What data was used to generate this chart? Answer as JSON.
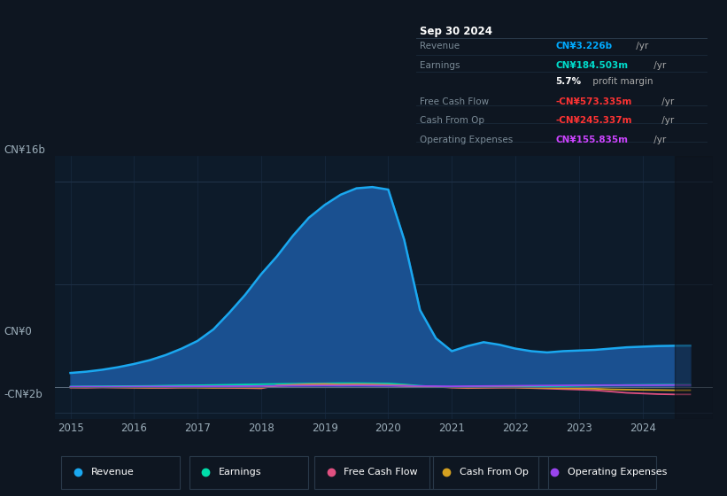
{
  "background_color": "#0e1621",
  "plot_bg_color": "#0d1b2a",
  "title_box": {
    "date": "Sep 30 2024",
    "rows": [
      {
        "label": "Revenue",
        "value": "CN¥3.226b",
        "suffix": " /yr",
        "value_color": "#00aaff"
      },
      {
        "label": "Earnings",
        "value": "CN¥184.503m",
        "suffix": " /yr",
        "value_color": "#00ddcc"
      },
      {
        "label": "",
        "value": "5.7%",
        "suffix": " profit margin",
        "value_color": "#ffffff"
      },
      {
        "label": "Free Cash Flow",
        "value": "-CN¥573.335m",
        "suffix": " /yr",
        "value_color": "#ff3333"
      },
      {
        "label": "Cash From Op",
        "value": "-CN¥245.337m",
        "suffix": " /yr",
        "value_color": "#ff3333"
      },
      {
        "label": "Operating Expenses",
        "value": "CN¥155.835m",
        "suffix": " /yr",
        "value_color": "#cc44ff"
      }
    ]
  },
  "ylim": [
    -2500000000.0,
    18000000000.0
  ],
  "xticks": [
    2015,
    2016,
    2017,
    2018,
    2019,
    2020,
    2021,
    2022,
    2023,
    2024
  ],
  "grid_color": "#1a2d45",
  "hline_color": "#2a3f58",
  "zero_line_color": "#5a6a7a",
  "text_color": "#9aacb8",
  "label_color": "#7a8a96",
  "legend": [
    {
      "label": "Revenue",
      "color": "#1aa8f0"
    },
    {
      "label": "Earnings",
      "color": "#00ddaa"
    },
    {
      "label": "Free Cash Flow",
      "color": "#e05080"
    },
    {
      "label": "Cash From Op",
      "color": "#d4a020"
    },
    {
      "label": "Operating Expenses",
      "color": "#9944ee"
    }
  ],
  "revenue_fill_color": "#1a5090",
  "revenue_line_color": "#1aa8f0",
  "earnings_color": "#00ddaa",
  "fcf_color": "#e05080",
  "cfop_color": "#d4a020",
  "opex_color": "#9944ee",
  "series": {
    "years": [
      2015.0,
      2015.25,
      2015.5,
      2015.75,
      2016.0,
      2016.25,
      2016.5,
      2016.75,
      2017.0,
      2017.25,
      2017.5,
      2017.75,
      2018.0,
      2018.25,
      2018.5,
      2018.75,
      2019.0,
      2019.25,
      2019.5,
      2019.75,
      2020.0,
      2020.25,
      2020.5,
      2020.75,
      2021.0,
      2021.25,
      2021.5,
      2021.75,
      2022.0,
      2022.25,
      2022.5,
      2022.75,
      2023.0,
      2023.25,
      2023.5,
      2023.75,
      2024.0,
      2024.25,
      2024.5,
      2024.75
    ],
    "revenue": [
      1100000000.0,
      1200000000.0,
      1350000000.0,
      1550000000.0,
      1800000000.0,
      2100000000.0,
      2500000000.0,
      3000000000.0,
      3600000000.0,
      4500000000.0,
      5800000000.0,
      7200000000.0,
      8800000000.0,
      10200000000.0,
      11800000000.0,
      13200000000.0,
      14200000000.0,
      15000000000.0,
      15500000000.0,
      15600000000.0,
      15400000000.0,
      11500000000.0,
      6000000000.0,
      3800000000.0,
      2800000000.0,
      3200000000.0,
      3500000000.0,
      3300000000.0,
      3000000000.0,
      2800000000.0,
      2700000000.0,
      2800000000.0,
      2850000000.0,
      2900000000.0,
      3000000000.0,
      3100000000.0,
      3150000000.0,
      3200000000.0,
      3220000000.0,
      3226000000.0
    ],
    "earnings": [
      40000000.0,
      50000000.0,
      60000000.0,
      70000000.0,
      80000000.0,
      90000000.0,
      110000000.0,
      130000000.0,
      140000000.0,
      160000000.0,
      180000000.0,
      200000000.0,
      220000000.0,
      240000000.0,
      260000000.0,
      280000000.0,
      290000000.0,
      300000000.0,
      300000000.0,
      290000000.0,
      280000000.0,
      200000000.0,
      100000000.0,
      30000000.0,
      10000000.0,
      20000000.0,
      30000000.0,
      40000000.0,
      50000000.0,
      60000000.0,
      70000000.0,
      80000000.0,
      100000000.0,
      120000000.0,
      140000000.0,
      160000000.0,
      170000000.0,
      180000000.0,
      184000000.0,
      184500000.0
    ],
    "free_cash_flow": [
      -40000000.0,
      -50000000.0,
      -30000000.0,
      -40000000.0,
      -50000000.0,
      -60000000.0,
      -70000000.0,
      -40000000.0,
      -30000000.0,
      -50000000.0,
      -70000000.0,
      -80000000.0,
      -100000000.0,
      120000000.0,
      180000000.0,
      220000000.0,
      240000000.0,
      200000000.0,
      220000000.0,
      200000000.0,
      170000000.0,
      120000000.0,
      60000000.0,
      20000000.0,
      -40000000.0,
      -80000000.0,
      -60000000.0,
      -50000000.0,
      -40000000.0,
      -80000000.0,
      -120000000.0,
      -160000000.0,
      -200000000.0,
      -250000000.0,
      -350000000.0,
      -450000000.0,
      -500000000.0,
      -550000000.0,
      -573000000.0,
      -573300000.0
    ],
    "cash_from_op": [
      -20000000.0,
      -20000000.0,
      -10000000.0,
      -20000000.0,
      -30000000.0,
      -40000000.0,
      -20000000.0,
      -30000000.0,
      -40000000.0,
      -50000000.0,
      -30000000.0,
      -40000000.0,
      -50000000.0,
      100000000.0,
      140000000.0,
      180000000.0,
      200000000.0,
      170000000.0,
      180000000.0,
      160000000.0,
      140000000.0,
      90000000.0,
      50000000.0,
      20000000.0,
      -20000000.0,
      -40000000.0,
      -30000000.0,
      -20000000.0,
      -30000000.0,
      -50000000.0,
      -70000000.0,
      -90000000.0,
      -100000000.0,
      -130000000.0,
      -180000000.0,
      -200000000.0,
      -220000000.0,
      -230000000.0,
      -245000000.0,
      -245300000.0
    ],
    "operating_expenses": [
      20000000.0,
      30000000.0,
      25000000.0,
      30000000.0,
      40000000.0,
      45000000.0,
      50000000.0,
      55000000.0,
      60000000.0,
      65000000.0,
      70000000.0,
      75000000.0,
      80000000.0,
      90000000.0,
      100000000.0,
      110000000.0,
      120000000.0,
      110000000.0,
      120000000.0,
      110000000.0,
      100000000.0,
      90000000.0,
      80000000.0,
      70000000.0,
      60000000.0,
      70000000.0,
      80000000.0,
      90000000.0,
      100000000.0,
      110000000.0,
      120000000.0,
      130000000.0,
      140000000.0,
      145000000.0,
      150000000.0,
      148000000.0,
      146000000.0,
      147000000.0,
      155800000.0,
      155800000.0
    ]
  }
}
